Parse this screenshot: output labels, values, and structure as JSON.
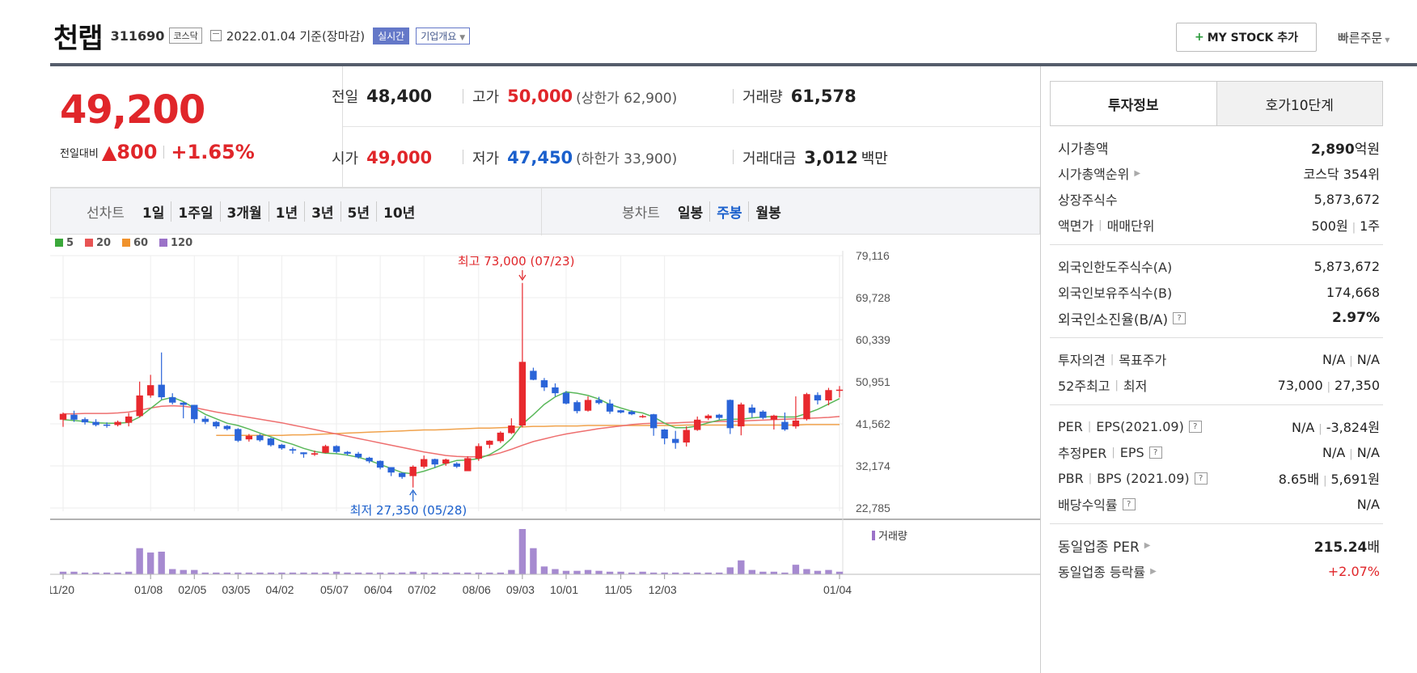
{
  "header": {
    "name": "천랩",
    "code": "311690",
    "market": "코스닥",
    "date": "2022.01.04 기준(장마감)",
    "realtime": "실시간",
    "company": "기업개요",
    "mystock": "MY STOCK 추가",
    "quick": "빠른주문"
  },
  "price": {
    "current": "49,200",
    "change_label": "전일대비",
    "change": "▲800",
    "change_pct": "+1.65%"
  },
  "stats": {
    "prev_label": "전일",
    "prev": "48,400",
    "high_label": "고가",
    "high": "50,000",
    "upper_limit": "(상한가 62,900)",
    "volume_label": "거래량",
    "volume": "61,578",
    "open_label": "시가",
    "open": "49,000",
    "low_label": "저가",
    "low": "47,450",
    "lower_limit": "(하한가 33,900)",
    "amount_label": "거래대금",
    "amount": "3,012",
    "amount_unit": "백만"
  },
  "periods": {
    "line_label": "선차트",
    "line": [
      "1일",
      "1주일",
      "3개월",
      "1년",
      "3년",
      "5년",
      "10년"
    ],
    "candle_label": "봉차트",
    "candle": [
      "일봉",
      "주봉",
      "월봉"
    ],
    "active": "주봉"
  },
  "chart_data": {
    "type": "candlestick",
    "legend": [
      {
        "name": "5",
        "color": "#3aa83a"
      },
      {
        "name": "20",
        "color": "#e85454"
      },
      {
        "name": "60",
        "color": "#f0922c"
      },
      {
        "name": "120",
        "color": "#9b72c8"
      }
    ],
    "y_ticks": [
      "79,116",
      "69,728",
      "60,339",
      "50,951",
      "41,562",
      "32,174",
      "22,785"
    ],
    "ylim": [
      22785,
      79116
    ],
    "x_labels": [
      "11/20",
      "01/08",
      "02/05",
      "03/05",
      "04/02",
      "05/07",
      "06/04",
      "07/02",
      "08/06",
      "09/03",
      "10/01",
      "11/05",
      "12/03",
      "01/04"
    ],
    "high_annotation": "최고 73,000 (07/23)",
    "low_annotation": "최저 27,350 (05/28)",
    "volume_label": "거래량",
    "candles": [
      [
        42500,
        43800,
        40900,
        44100
      ],
      [
        43600,
        42500,
        42000,
        44500
      ],
      [
        42600,
        41900,
        41400,
        43000
      ],
      [
        42000,
        41300,
        41000,
        42600
      ],
      [
        41400,
        41300,
        40700,
        41900
      ],
      [
        41300,
        42000,
        41000,
        42300
      ],
      [
        41800,
        43200,
        41000,
        44000
      ],
      [
        43300,
        47900,
        43000,
        51000
      ],
      [
        47900,
        50200,
        47400,
        52500
      ],
      [
        50300,
        47500,
        47000,
        57500
      ],
      [
        47500,
        46300,
        45900,
        48400
      ],
      [
        46300,
        45800,
        42800,
        46400
      ],
      [
        45800,
        42600,
        41700,
        45800
      ],
      [
        42700,
        42000,
        41500,
        43300
      ],
      [
        42000,
        41000,
        40500,
        42200
      ],
      [
        41100,
        40400,
        40100,
        41300
      ],
      [
        40400,
        37800,
        37500,
        40600
      ],
      [
        38100,
        38900,
        37600,
        39300
      ],
      [
        39000,
        37900,
        37600,
        39300
      ],
      [
        38300,
        36800,
        36500,
        38500
      ],
      [
        36900,
        36100,
        35800,
        37100
      ],
      [
        35900,
        35600,
        34900,
        36300
      ],
      [
        35200,
        34800,
        34000,
        35200
      ],
      [
        34700,
        35000,
        34400,
        35600
      ],
      [
        35100,
        36600,
        35000,
        36900
      ],
      [
        36600,
        35300,
        35000,
        36800
      ],
      [
        35300,
        34900,
        34500,
        35500
      ],
      [
        34900,
        34100,
        33800,
        35300
      ],
      [
        34000,
        33200,
        32800,
        34200
      ],
      [
        33300,
        31800,
        31400,
        33400
      ],
      [
        31900,
        30700,
        29900,
        31900
      ],
      [
        30600,
        29700,
        29300,
        30700
      ],
      [
        29900,
        32000,
        27350,
        32300
      ],
      [
        32000,
        33700,
        31600,
        34500
      ],
      [
        33700,
        32500,
        31800,
        33800
      ],
      [
        32700,
        33600,
        32200,
        33800
      ],
      [
        32700,
        32000,
        31700,
        33000
      ],
      [
        31000,
        33900,
        31000,
        34300
      ],
      [
        33800,
        36600,
        33300,
        37200
      ],
      [
        36900,
        37800,
        36100,
        37900
      ],
      [
        37700,
        39600,
        37300,
        39900
      ],
      [
        39500,
        41200,
        39300,
        42800
      ],
      [
        41200,
        55400,
        40800,
        73000
      ],
      [
        53400,
        51400,
        51300,
        54100
      ],
      [
        51300,
        49700,
        48900,
        51800
      ],
      [
        49700,
        48400,
        47700,
        50600
      ],
      [
        48500,
        46100,
        45900,
        48900
      ],
      [
        46400,
        44400,
        43900,
        46800
      ],
      [
        44500,
        46900,
        44300,
        47700
      ],
      [
        46900,
        46200,
        45900,
        47600
      ],
      [
        46100,
        44300,
        43800,
        47000
      ],
      [
        44600,
        44100,
        43900,
        44700
      ],
      [
        44300,
        43700,
        43500,
        44600
      ],
      [
        43300,
        43300,
        42900,
        43600
      ],
      [
        43700,
        40600,
        38900,
        43800
      ],
      [
        40300,
        38300,
        37000,
        40400
      ],
      [
        38200,
        37300,
        36000,
        40000
      ],
      [
        37400,
        40200,
        36500,
        41000
      ],
      [
        40200,
        42500,
        40000,
        43200
      ],
      [
        42800,
        43400,
        42400,
        43700
      ],
      [
        43600,
        42900,
        42500,
        43800
      ],
      [
        46900,
        40600,
        39300,
        47000
      ],
      [
        41000,
        45900,
        39000,
        46300
      ],
      [
        45200,
        44000,
        43000,
        45900
      ],
      [
        44300,
        42900,
        42600,
        44600
      ],
      [
        42500,
        43400,
        40300,
        43600
      ],
      [
        42000,
        40300,
        40000,
        44100
      ],
      [
        41000,
        42300,
        40500,
        47700
      ],
      [
        42600,
        48200,
        42300,
        48500
      ],
      [
        48000,
        46800,
        45900,
        48600
      ],
      [
        46800,
        49100,
        45700,
        49600
      ],
      [
        49000,
        49200,
        47450,
        50000
      ]
    ],
    "volumes": [
      3,
      3,
      2,
      2,
      2,
      2,
      3,
      30,
      25,
      26,
      6,
      5,
      5,
      2,
      2,
      2,
      2,
      2,
      2,
      2,
      2,
      2,
      2,
      2,
      2,
      3,
      2,
      2,
      2,
      2,
      2,
      2,
      3,
      2,
      2,
      2,
      2,
      2,
      2,
      2,
      2,
      5,
      52,
      30,
      9,
      6,
      4,
      4,
      5,
      4,
      3,
      3,
      2,
      3,
      2,
      2,
      2,
      2,
      2,
      2,
      2,
      8,
      16,
      5,
      3,
      3,
      2,
      11,
      6,
      4,
      5,
      3
    ],
    "ma5": [
      42500,
      42300,
      42100,
      41800,
      41700,
      41700,
      41900,
      43100,
      45000,
      46900,
      47500,
      46500,
      45100,
      43700,
      42700,
      41700,
      41200,
      40400,
      39500,
      38700,
      37700,
      37000,
      36100,
      35400,
      35000,
      34900,
      34600,
      34100,
      33400,
      32500,
      31600,
      30700,
      30400,
      31000,
      31800,
      32700,
      33400,
      33500,
      33800,
      34700,
      36100,
      38300,
      41500,
      43600,
      45900,
      47600,
      48700,
      48400,
      47900,
      47100,
      45900,
      45100,
      44400,
      44000,
      43100,
      41700,
      40700,
      40700,
      41100,
      41800,
      42400,
      42600,
      42600,
      42900,
      43100,
      43200,
      43100,
      43100,
      43900,
      44800,
      46000,
      47200
    ],
    "ma20": [
      43800,
      43800,
      43900,
      43900,
      43900,
      44000,
      44200,
      44600,
      45100,
      45500,
      45600,
      45500,
      45200,
      44700,
      44200,
      43800,
      43400,
      43000,
      42600,
      42200,
      41800,
      41300,
      40800,
      40300,
      39800,
      39300,
      38800,
      38300,
      37800,
      37300,
      36800,
      36300,
      35800,
      35300,
      34900,
      34500,
      34300,
      34200,
      34200,
      34500,
      35100,
      35900,
      36800,
      37600,
      38200,
      38800,
      39300,
      39700,
      40100,
      40500,
      40800,
      41100,
      41400,
      41600,
      41700,
      41700,
      41800,
      41900,
      42000,
      42000,
      42100,
      42100,
      42200,
      42300,
      42400,
      42500,
      42600,
      42700,
      42800,
      42900,
      43000,
      43200
    ],
    "ma60": [
      null,
      null,
      null,
      null,
      null,
      null,
      null,
      null,
      null,
      null,
      null,
      null,
      null,
      null,
      39000,
      39000,
      39000,
      39000,
      39000,
      39000,
      39000,
      39100,
      39100,
      39200,
      39300,
      39400,
      39500,
      39600,
      39700,
      39800,
      39900,
      40000,
      40100,
      40200,
      40200,
      40300,
      40400,
      40500,
      40600,
      40600,
      40700,
      40800,
      40900,
      41000,
      41000,
      41100,
      41100,
      41100,
      41200,
      41200,
      41200,
      41200,
      41200,
      41200,
      41200,
      41200,
      41200,
      41300,
      41300,
      41300,
      41300,
      41300,
      41300,
      41300,
      41300,
      41300,
      41300,
      41300,
      41400,
      41400,
      41400,
      41400
    ]
  },
  "right_panel": {
    "tabs": [
      "투자정보",
      "호가10단계"
    ],
    "market_cap_label": "시가총액",
    "market_cap": "2,890",
    "market_cap_unit": "억원",
    "market_cap_rank_label": "시가총액순위",
    "market_cap_rank": "코스닥 354위",
    "shares_label": "상장주식수",
    "shares": "5,873,672",
    "par_label": "액면가",
    "trade_unit_label": "매매단위",
    "par": "500원",
    "trade_unit": "1주",
    "foreign_limit_label": "외국인한도주식수(A)",
    "foreign_limit": "5,873,672",
    "foreign_hold_label": "외국인보유주식수(B)",
    "foreign_hold": "174,668",
    "foreign_ratio_label": "외국인소진율(B/A)",
    "foreign_ratio": "2.97%",
    "opinion_label": "투자의견",
    "target_label": "목표주가",
    "opinion": "N/A",
    "target": "N/A",
    "w52_high_label": "52주최고",
    "w52_low_label": "최저",
    "w52_high": "73,000",
    "w52_low": "27,350",
    "per_label": "PER",
    "eps_label": "EPS(2021.09)",
    "per": "N/A",
    "eps": "-3,824원",
    "est_per_label": "추정PER",
    "est_eps_label": "EPS",
    "est_per": "N/A",
    "est_eps": "N/A",
    "pbr_label": "PBR",
    "bps_label": "BPS (2021.09)",
    "pbr": "8.65배",
    "bps": "5,691원",
    "div_label": "배당수익률",
    "div": "N/A",
    "sector_per_label": "동일업종 PER",
    "sector_per": "215.24",
    "sector_per_unit": "배",
    "sector_chg_label": "동일업종 등락률",
    "sector_chg": "+2.07%"
  }
}
